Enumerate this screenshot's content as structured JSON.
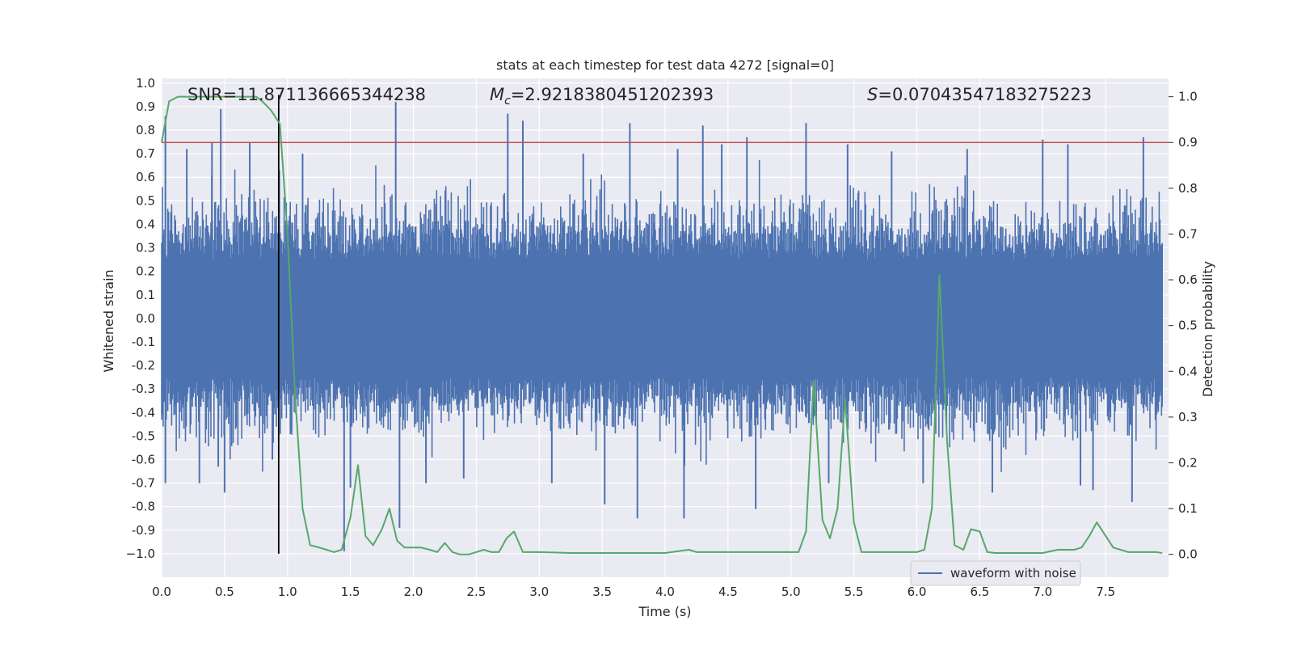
{
  "chart_data": {
    "type": "line",
    "title": "stats at each timestep for test data 4272 [signal=0]",
    "xlabel": "Time (s)",
    "ylabel": "Whitened strain",
    "ylabel_right": "Detection probability",
    "xlim": [
      0.0,
      8.0
    ],
    "ylim": [
      -1.1,
      1.02
    ],
    "ylim_right": [
      -0.05,
      1.04
    ],
    "x_ticks": [
      "0.0",
      "0.5",
      "1.0",
      "1.5",
      "2.0",
      "2.5",
      "3.0",
      "3.5",
      "4.0",
      "4.5",
      "5.0",
      "5.5",
      "6.0",
      "6.5",
      "7.0",
      "7.5"
    ],
    "y_ticks": [
      "1.0",
      "0.9",
      "0.8",
      "0.7",
      "0.6",
      "0.5",
      "0.4",
      "0.3",
      "0.2",
      "0.1",
      "0.0",
      "-0.1",
      "-0.2",
      "-0.3",
      "-0.4",
      "-0.5",
      "-0.6",
      "-0.7",
      "-0.8",
      "-0.9",
      "−1.0"
    ],
    "y_ticks_right": [
      "0.0",
      "0.1",
      "0.2",
      "0.3",
      "0.4",
      "0.5",
      "0.6",
      "0.7",
      "0.8",
      "0.9",
      "1.0"
    ],
    "grid": true,
    "legend_position": "bottom-right",
    "legend": [
      "waveform with noise"
    ],
    "annotations": {
      "snr": "SNR=11.871136665344238",
      "mc_symbol": "M",
      "mc_sub": "c",
      "mc_value": "=2.9218380451202393",
      "s_symbol": "S",
      "s_value": "=0.07043547183275223"
    },
    "threshold": 0.9,
    "marker_time": 0.93,
    "series": [
      {
        "name": "waveform with noise",
        "color": "#4c72b0",
        "spikes": [
          {
            "x": 0.03,
            "y": 0.86
          },
          {
            "x": 0.03,
            "y": -0.7
          },
          {
            "x": 0.2,
            "y": 0.72
          },
          {
            "x": 0.3,
            "y": -0.7
          },
          {
            "x": 0.4,
            "y": 0.75
          },
          {
            "x": 0.45,
            "y": -0.63
          },
          {
            "x": 0.47,
            "y": 0.89
          },
          {
            "x": 0.5,
            "y": -0.74
          },
          {
            "x": 0.7,
            "y": 0.75
          },
          {
            "x": 0.88,
            "y": -0.6
          },
          {
            "x": 1.12,
            "y": 0.7
          },
          {
            "x": 1.45,
            "y": -0.99
          },
          {
            "x": 1.5,
            "y": -0.72
          },
          {
            "x": 1.86,
            "y": 0.92
          },
          {
            "x": 1.89,
            "y": -0.89
          },
          {
            "x": 2.1,
            "y": -0.7
          },
          {
            "x": 2.4,
            "y": -0.68
          },
          {
            "x": 2.75,
            "y": 0.87
          },
          {
            "x": 2.87,
            "y": 0.84
          },
          {
            "x": 3.1,
            "y": -0.7
          },
          {
            "x": 3.35,
            "y": 0.7
          },
          {
            "x": 3.52,
            "y": -0.79
          },
          {
            "x": 3.72,
            "y": 0.83
          },
          {
            "x": 3.78,
            "y": -0.85
          },
          {
            "x": 4.1,
            "y": 0.72
          },
          {
            "x": 4.15,
            "y": -0.85
          },
          {
            "x": 4.3,
            "y": 0.82
          },
          {
            "x": 4.45,
            "y": 0.74
          },
          {
            "x": 4.65,
            "y": 0.77
          },
          {
            "x": 4.72,
            "y": -0.81
          },
          {
            "x": 5.12,
            "y": 0.83
          },
          {
            "x": 5.3,
            "y": -0.7
          },
          {
            "x": 5.45,
            "y": 0.74
          },
          {
            "x": 5.8,
            "y": 0.71
          },
          {
            "x": 6.05,
            "y": -0.7
          },
          {
            "x": 6.4,
            "y": 0.72
          },
          {
            "x": 6.6,
            "y": -0.74
          },
          {
            "x": 7.0,
            "y": 0.76
          },
          {
            "x": 7.2,
            "y": 0.74
          },
          {
            "x": 7.3,
            "y": -0.71
          },
          {
            "x": 7.4,
            "y": -0.73
          },
          {
            "x": 7.71,
            "y": -0.78
          },
          {
            "x": 7.8,
            "y": 0.77
          }
        ]
      },
      {
        "name": "detection probability",
        "color": "#55a868",
        "points": [
          [
            0.0,
            0.9
          ],
          [
            0.06,
            0.99
          ],
          [
            0.13,
            1.0
          ],
          [
            0.25,
            1.0
          ],
          [
            0.5,
            1.0
          ],
          [
            0.75,
            1.0
          ],
          [
            0.8,
            0.99
          ],
          [
            0.87,
            0.97
          ],
          [
            0.94,
            0.94
          ],
          [
            1.0,
            0.7
          ],
          [
            1.06,
            0.35
          ],
          [
            1.12,
            0.1
          ],
          [
            1.18,
            0.02
          ],
          [
            1.25,
            0.015
          ],
          [
            1.31,
            0.01
          ],
          [
            1.37,
            0.005
          ],
          [
            1.43,
            0.01
          ],
          [
            1.5,
            0.08
          ],
          [
            1.56,
            0.195
          ],
          [
            1.62,
            0.04
          ],
          [
            1.68,
            0.02
          ],
          [
            1.75,
            0.055
          ],
          [
            1.81,
            0.1
          ],
          [
            1.87,
            0.03
          ],
          [
            1.93,
            0.015
          ],
          [
            2.0,
            0.015
          ],
          [
            2.06,
            0.015
          ],
          [
            2.13,
            0.01
          ],
          [
            2.19,
            0.005
          ],
          [
            2.25,
            0.025
          ],
          [
            2.31,
            0.005
          ],
          [
            2.37,
            0.0
          ],
          [
            2.44,
            0.0
          ],
          [
            2.5,
            0.005
          ],
          [
            2.56,
            0.01
          ],
          [
            2.62,
            0.005
          ],
          [
            2.68,
            0.005
          ],
          [
            2.74,
            0.035
          ],
          [
            2.8,
            0.05
          ],
          [
            2.87,
            0.005
          ],
          [
            2.93,
            0.005
          ],
          [
            3.0,
            0.005
          ],
          [
            3.25,
            0.003
          ],
          [
            3.5,
            0.003
          ],
          [
            3.75,
            0.003
          ],
          [
            4.0,
            0.003
          ],
          [
            4.19,
            0.01
          ],
          [
            4.25,
            0.005
          ],
          [
            4.5,
            0.005
          ],
          [
            4.75,
            0.005
          ],
          [
            5.0,
            0.005
          ],
          [
            5.06,
            0.005
          ],
          [
            5.12,
            0.05
          ],
          [
            5.18,
            0.38
          ],
          [
            5.25,
            0.075
          ],
          [
            5.31,
            0.035
          ],
          [
            5.37,
            0.1
          ],
          [
            5.43,
            0.34
          ],
          [
            5.5,
            0.07
          ],
          [
            5.56,
            0.005
          ],
          [
            5.62,
            0.005
          ],
          [
            5.75,
            0.005
          ],
          [
            5.87,
            0.005
          ],
          [
            6.0,
            0.005
          ],
          [
            6.06,
            0.01
          ],
          [
            6.12,
            0.1
          ],
          [
            6.18,
            0.61
          ],
          [
            6.24,
            0.25
          ],
          [
            6.3,
            0.02
          ],
          [
            6.37,
            0.01
          ],
          [
            6.43,
            0.055
          ],
          [
            6.5,
            0.05
          ],
          [
            6.56,
            0.005
          ],
          [
            6.62,
            0.003
          ],
          [
            6.75,
            0.003
          ],
          [
            7.0,
            0.003
          ],
          [
            7.12,
            0.01
          ],
          [
            7.25,
            0.01
          ],
          [
            7.31,
            0.015
          ],
          [
            7.37,
            0.04
          ],
          [
            7.43,
            0.07
          ],
          [
            7.56,
            0.015
          ],
          [
            7.68,
            0.005
          ],
          [
            7.81,
            0.005
          ],
          [
            7.9,
            0.005
          ],
          [
            7.95,
            0.003
          ]
        ]
      }
    ],
    "colors": {
      "background": "#eaeaf2",
      "grid": "#ffffff",
      "threshold": "#c44e52",
      "marker": "#000000"
    }
  }
}
